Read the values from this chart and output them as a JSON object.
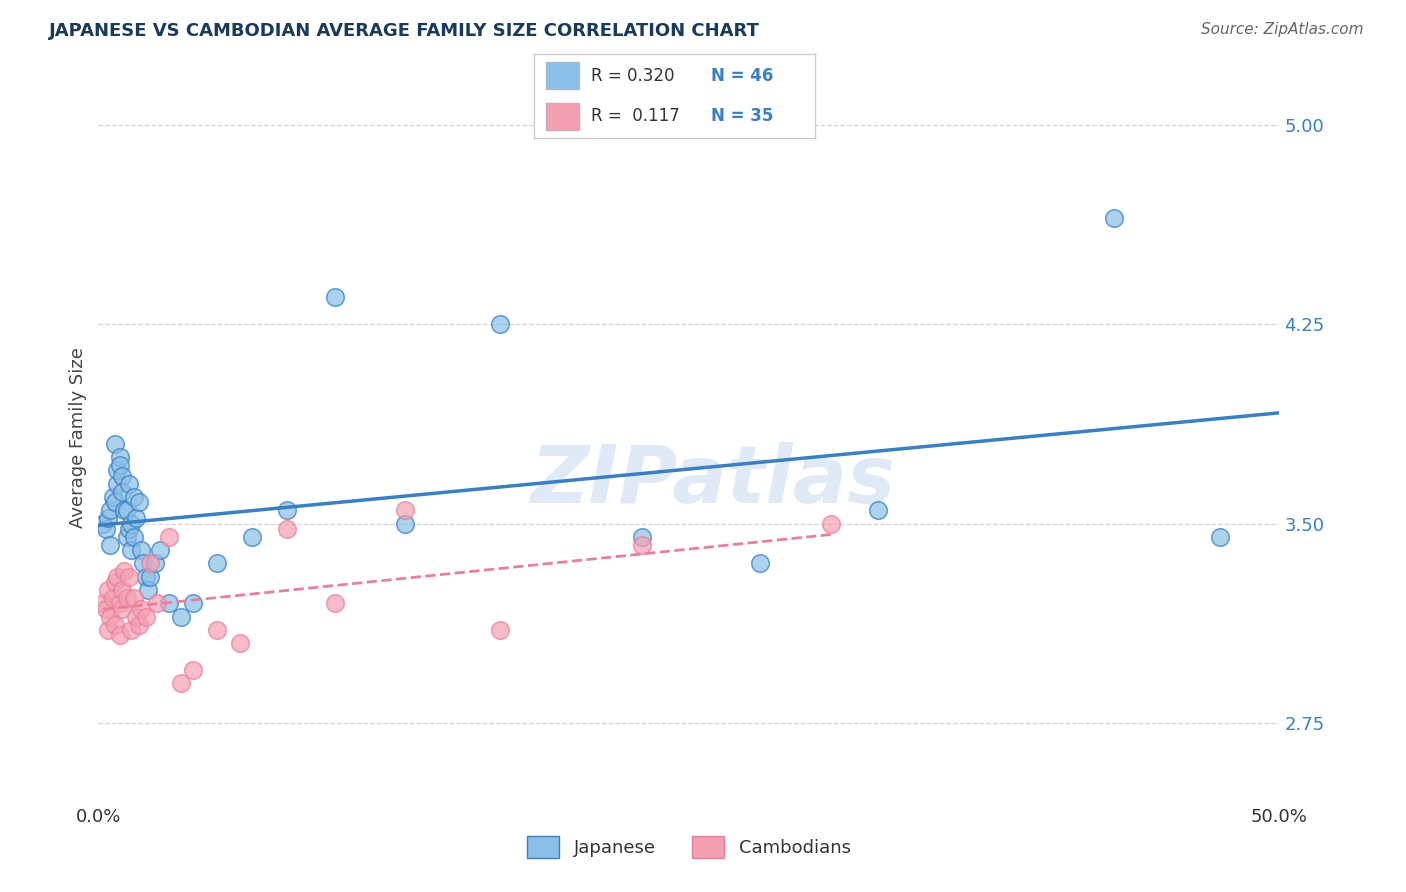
{
  "title": "JAPANESE VS CAMBODIAN AVERAGE FAMILY SIZE CORRELATION CHART",
  "source": "Source: ZipAtlas.com",
  "ylabel": "Average Family Size",
  "xlim": [
    0.0,
    0.5
  ],
  "ylim": [
    2.45,
    5.2
  ],
  "yticks": [
    2.75,
    3.5,
    4.25,
    5.0
  ],
  "background_color": "#ffffff",
  "grid_color": "#cccccc",
  "watermark": "ZIPatlas",
  "japanese_color": "#8bbfe8",
  "cambodian_color": "#f4a0b0",
  "japanese_line_color": "#3a7fc1",
  "cambodian_line_color": "#e87fa0",
  "legend_R1": "R = 0.320",
  "legend_N1": "N = 46",
  "legend_R2": "R =  0.117",
  "legend_N2": "N = 35",
  "japanese_x": [
    0.002,
    0.003,
    0.004,
    0.005,
    0.005,
    0.006,
    0.007,
    0.007,
    0.008,
    0.008,
    0.009,
    0.009,
    0.01,
    0.01,
    0.011,
    0.012,
    0.012,
    0.013,
    0.013,
    0.014,
    0.014,
    0.015,
    0.015,
    0.016,
    0.017,
    0.018,
    0.019,
    0.02,
    0.021,
    0.022,
    0.024,
    0.026,
    0.03,
    0.035,
    0.04,
    0.05,
    0.065,
    0.08,
    0.1,
    0.13,
    0.17,
    0.23,
    0.28,
    0.33,
    0.43,
    0.475
  ],
  "japanese_y": [
    3.5,
    3.48,
    3.52,
    3.55,
    3.42,
    3.6,
    3.58,
    3.8,
    3.65,
    3.7,
    3.75,
    3.72,
    3.68,
    3.62,
    3.55,
    3.55,
    3.45,
    3.48,
    3.65,
    3.5,
    3.4,
    3.6,
    3.45,
    3.52,
    3.58,
    3.4,
    3.35,
    3.3,
    3.25,
    3.3,
    3.35,
    3.4,
    3.2,
    3.15,
    3.2,
    3.35,
    3.45,
    3.55,
    4.35,
    3.5,
    4.25,
    3.45,
    3.35,
    3.55,
    4.65,
    3.45
  ],
  "cambodian_x": [
    0.002,
    0.003,
    0.004,
    0.004,
    0.005,
    0.006,
    0.007,
    0.007,
    0.008,
    0.009,
    0.009,
    0.01,
    0.01,
    0.011,
    0.012,
    0.013,
    0.014,
    0.015,
    0.016,
    0.017,
    0.018,
    0.02,
    0.022,
    0.025,
    0.03,
    0.035,
    0.04,
    0.05,
    0.06,
    0.08,
    0.1,
    0.13,
    0.17,
    0.23,
    0.31
  ],
  "cambodian_y": [
    3.2,
    3.18,
    3.25,
    3.1,
    3.15,
    3.22,
    3.28,
    3.12,
    3.3,
    3.2,
    3.08,
    3.25,
    3.18,
    3.32,
    3.22,
    3.3,
    3.1,
    3.22,
    3.15,
    3.12,
    3.18,
    3.15,
    3.35,
    3.2,
    3.45,
    2.9,
    2.95,
    3.1,
    3.05,
    3.48,
    3.2,
    3.55,
    3.1,
    3.42,
    3.5
  ]
}
